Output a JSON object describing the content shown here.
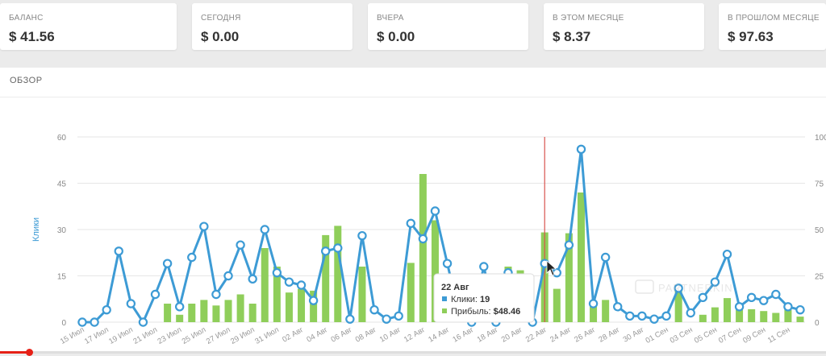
{
  "stats": [
    {
      "label": "БАЛАНС",
      "value": "$ 41.56"
    },
    {
      "label": "СЕГОДНЯ",
      "value": "$ 0.00"
    },
    {
      "label": "ВЧЕРА",
      "value": "$ 0.00"
    },
    {
      "label": "В ЭТОМ МЕСЯЦЕ",
      "value": "$ 8.37"
    },
    {
      "label": "В ПРОШЛОМ МЕСЯЦЕ",
      "value": "$ 97.63"
    }
  ],
  "overview": {
    "title": "ОБЗОР"
  },
  "tooltip": {
    "date": "22 Авг",
    "clicks_label": "Клики:",
    "clicks_value": "19",
    "profit_label": "Прибыль:",
    "profit_value": "$48.46"
  },
  "watermark": "PARTNERKIN",
  "video_progress": 0.035,
  "colors": {
    "line": "#3d9bd5",
    "bar": "#8fce5a",
    "marker": "#d9534f"
  },
  "chart_data": {
    "type": "bar+line",
    "x": [
      "15 Июл",
      "16 Июл",
      "17 Июл",
      "18 Июл",
      "19 Июл",
      "20 Июл",
      "21 Июл",
      "22 Июл",
      "23 Июл",
      "24 Июл",
      "25 Июл",
      "26 Июл",
      "27 Июл",
      "28 Июл",
      "29 Июл",
      "30 Июл",
      "31 Июл",
      "01 Авг",
      "02 Авг",
      "03 Авг",
      "04 Авг",
      "05 Авг",
      "06 Авг",
      "07 Авг",
      "08 Авг",
      "09 Авг",
      "10 Авг",
      "11 Авг",
      "12 Авг",
      "13 Авг",
      "14 Авг",
      "15 Авг",
      "16 Авг",
      "17 Авг",
      "18 Авг",
      "19 Авг",
      "20 Авг",
      "21 Авг",
      "22 Авг",
      "23 Авг",
      "24 Авг",
      "25 Авг",
      "26 Авг",
      "27 Авг",
      "28 Авг",
      "29 Авг",
      "30 Авг",
      "31 Авг",
      "01 Сен",
      "02 Сен",
      "03 Сен",
      "04 Сен",
      "05 Сен",
      "06 Сен",
      "07 Сен",
      "08 Сен",
      "09 Сен",
      "10 Сен",
      "11 Сен",
      "12 Сен"
    ],
    "x_tick_labels": [
      "15 Июл",
      "17 Июл",
      "19 Июл",
      "21 Июл",
      "23 Июл",
      "25 Июл",
      "27 Июл",
      "29 Июл",
      "31 Июл",
      "02 Авг",
      "04 Авг",
      "06 Авг",
      "08 Авг",
      "10 Авг",
      "12 Авг",
      "14 Авг",
      "16 Авг",
      "18 Авг",
      "20 Авг",
      "22 Авг",
      "24 Авг",
      "26 Авг",
      "28 Авг",
      "30 Авг",
      "01 Сен",
      "03 Сен",
      "05 Сен",
      "07 Сен",
      "09 Сен",
      "11 Сен"
    ],
    "series": [
      {
        "name": "Клики",
        "axis": "left",
        "values": [
          0,
          0,
          4,
          23,
          6,
          0,
          9,
          19,
          5,
          21,
          31,
          9,
          15,
          25,
          14,
          30,
          16,
          13,
          12,
          7,
          23,
          24,
          1,
          28,
          4,
          1,
          2,
          32,
          27,
          36,
          19,
          2,
          0,
          18,
          0,
          16,
          6,
          0,
          19,
          16,
          25,
          56,
          6,
          21,
          5,
          2,
          2,
          1,
          2,
          11,
          3,
          8,
          13,
          22,
          5,
          8,
          7,
          9,
          5,
          4
        ]
      },
      {
        "name": "Прибыль",
        "axis": "right",
        "values": [
          0,
          0,
          0,
          0,
          0,
          0,
          0,
          10,
          4,
          10,
          12,
          9,
          12,
          15,
          10,
          40,
          30,
          16,
          18,
          17,
          47,
          52,
          0,
          30,
          0,
          3,
          0,
          32,
          80,
          55,
          25,
          0,
          0,
          0,
          0,
          30,
          28,
          0,
          48.46,
          18,
          48,
          70,
          10,
          12,
          0,
          0,
          0,
          0,
          0,
          17,
          0,
          4,
          8,
          13,
          10,
          7,
          6,
          5,
          8,
          3
        ]
      }
    ],
    "ylabel": "Клики",
    "ylim": [
      0,
      60
    ],
    "y2lim": [
      0,
      100
    ],
    "y_ticks": [
      0,
      15,
      30,
      45,
      60
    ],
    "y2_ticks": [
      0,
      25,
      50,
      75,
      100
    ],
    "highlight_index": 38,
    "grid": true
  }
}
